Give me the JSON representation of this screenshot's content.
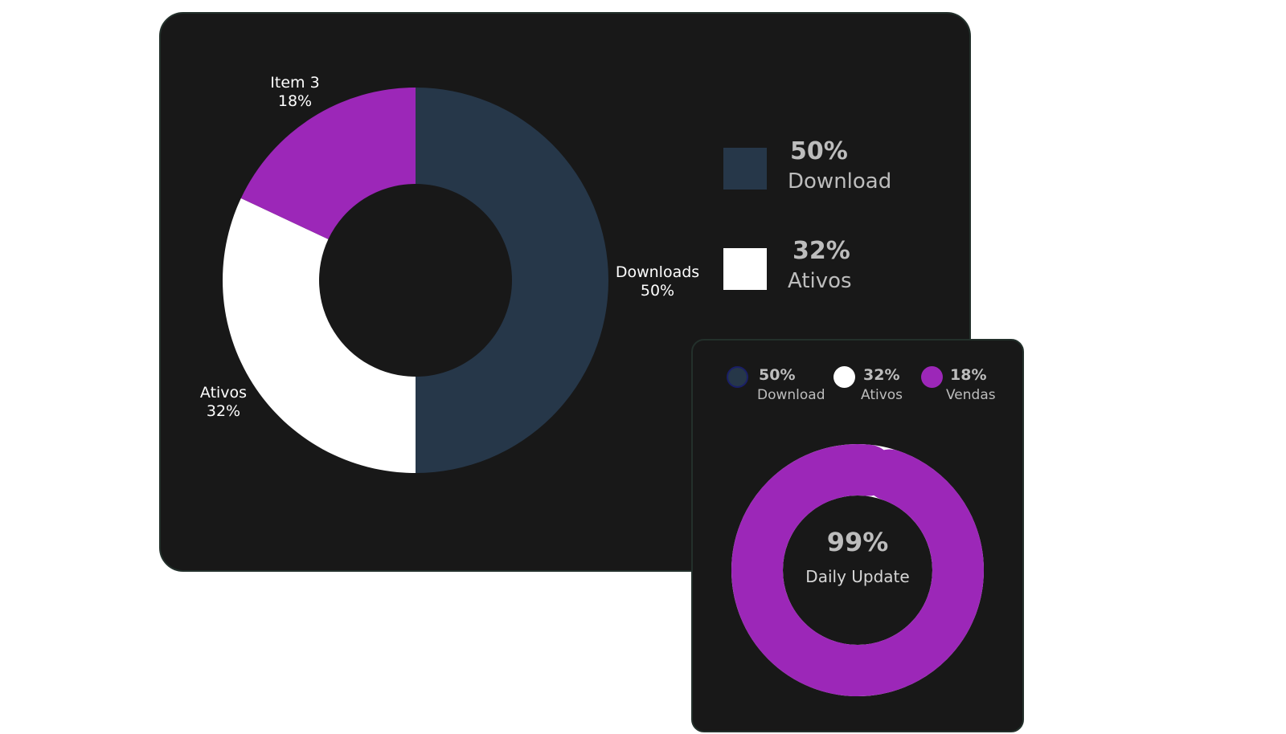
{
  "chart_data": [
    {
      "type": "pie",
      "donut": true,
      "slices": [
        {
          "label": "Downloads",
          "pct_label": "50%",
          "value": 50,
          "color": "#263749"
        },
        {
          "label": "Ativos",
          "pct_label": "32%",
          "value": 32,
          "color": "#ffffff"
        },
        {
          "label": "Item 3",
          "pct_label": "18%",
          "value": 18,
          "color": "#9c27b8"
        }
      ],
      "legend": [
        {
          "pct": "50%",
          "name": "Download",
          "color": "#263749"
        },
        {
          "pct": "32%",
          "name": "Ativos",
          "color": "#ffffff"
        }
      ],
      "legend_placement": "right"
    },
    {
      "type": "pie",
      "donut": true,
      "ring_value": 99,
      "ring_color": "#9c27b8",
      "ring_track_color": "#ffffff",
      "center_value": "99%",
      "center_label": "Daily Update",
      "legend": [
        {
          "pct": "50%",
          "name": "Download",
          "color": "#263749"
        },
        {
          "pct": "32%",
          "name": "Ativos",
          "color": "#ffffff"
        },
        {
          "pct": "18%",
          "name": "Vendas",
          "color": "#9c27b8"
        }
      ],
      "legend_placement": "top"
    }
  ]
}
